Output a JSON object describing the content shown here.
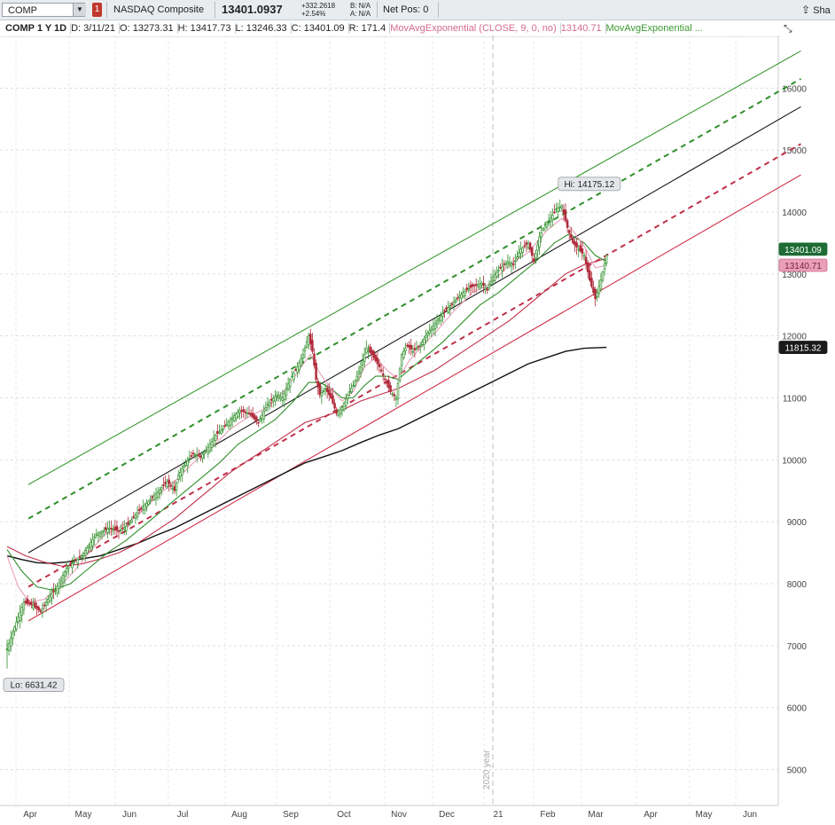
{
  "toolbar": {
    "symbol": "COMP",
    "badge": "1",
    "name": "NASDAQ Composite",
    "last": "13401.0937",
    "change_abs": "+332.2618",
    "change_pct": "+2.54%",
    "bid": "B: N/A",
    "ask": "A: N/A",
    "netpos": "Net Pos: 0",
    "share_label": "Sha"
  },
  "header": {
    "title": "COMP 1 Y 1D",
    "date": "D: 3/11/21",
    "open": "O: 13273.31",
    "high": "H: 13417.73",
    "low": "L: 13246.33",
    "close": "C: 13401.09",
    "range": "R: 171.4",
    "study1": "MovAvgExponential (CLOSE, 9, 0, no)",
    "study1_value": "13140.71",
    "study2": "MovAvgExponential ..."
  },
  "chart_data": {
    "type": "candlestick",
    "y_ticks": [
      5000,
      6000,
      7000,
      8000,
      9000,
      10000,
      11000,
      12000,
      13000,
      14000,
      15000,
      16000
    ],
    "x_ticks": [
      "Apr",
      "May",
      "Jun",
      "Jul",
      "Aug",
      "Sep",
      "Oct",
      "Nov",
      "Dec",
      "21",
      "Feb",
      "Mar",
      "Apr",
      "May",
      "Jun"
    ],
    "ylim": [
      4420,
      16850
    ],
    "year_marker": "2020 year",
    "high_label": "Hi: 14175.12",
    "low_label": "Lo: 6631.42",
    "price_tags": [
      {
        "value": "13401.09",
        "color": "#1e6b34"
      },
      {
        "value": "13140.71",
        "color": "#e8a0b8"
      },
      {
        "value": "11815.32",
        "color": "#1a1a1a"
      }
    ],
    "price_path": [
      [
        0,
        6950
      ],
      [
        4,
        7300
      ],
      [
        9,
        7700
      ],
      [
        14,
        7650
      ],
      [
        18,
        7550
      ],
      [
        23,
        7800
      ],
      [
        26,
        7900
      ],
      [
        32,
        8250
      ],
      [
        40,
        8450
      ],
      [
        48,
        8800
      ],
      [
        55,
        8900
      ],
      [
        60,
        8850
      ],
      [
        65,
        8950
      ],
      [
        70,
        9150
      ],
      [
        75,
        9300
      ],
      [
        80,
        9450
      ],
      [
        86,
        9650
      ],
      [
        90,
        9500
      ],
      [
        92,
        9750
      ],
      [
        96,
        9950
      ],
      [
        100,
        10100
      ],
      [
        104,
        10050
      ],
      [
        108,
        10200
      ],
      [
        112,
        10400
      ],
      [
        116,
        10500
      ],
      [
        120,
        10650
      ],
      [
        125,
        10800
      ],
      [
        130,
        10750
      ],
      [
        135,
        10600
      ],
      [
        140,
        10900
      ],
      [
        145,
        11050
      ],
      [
        148,
        11000
      ],
      [
        152,
        11300
      ],
      [
        156,
        11500
      ],
      [
        159,
        11700
      ],
      [
        162,
        12000
      ],
      [
        164,
        11750
      ],
      [
        166,
        11300
      ],
      [
        168,
        11050
      ],
      [
        171,
        11150
      ],
      [
        174,
        11000
      ],
      [
        177,
        10750
      ],
      [
        180,
        10850
      ],
      [
        183,
        11050
      ],
      [
        186,
        11200
      ],
      [
        190,
        11500
      ],
      [
        193,
        11800
      ],
      [
        196,
        11700
      ],
      [
        200,
        11500
      ],
      [
        203,
        11300
      ],
      [
        206,
        11100
      ],
      [
        209,
        11000
      ],
      [
        212,
        11700
      ],
      [
        215,
        11850
      ],
      [
        218,
        11750
      ],
      [
        222,
        11850
      ],
      [
        226,
        12050
      ],
      [
        230,
        12200
      ],
      [
        235,
        12400
      ],
      [
        240,
        12550
      ],
      [
        245,
        12700
      ],
      [
        250,
        12800
      ],
      [
        255,
        12850
      ],
      [
        258,
        12750
      ],
      [
        261,
        12950
      ],
      [
        265,
        13100
      ],
      [
        269,
        13200
      ],
      [
        272,
        13150
      ],
      [
        276,
        13400
      ],
      [
        280,
        13500
      ],
      [
        283,
        13200
      ],
      [
        286,
        13600
      ],
      [
        289,
        13800
      ],
      [
        292,
        13900
      ],
      [
        295,
        14050
      ],
      [
        298,
        14100
      ],
      [
        301,
        13750
      ],
      [
        304,
        13500
      ],
      [
        307,
        13400
      ],
      [
        310,
        13300
      ],
      [
        313,
        12900
      ],
      [
        316,
        12600
      ],
      [
        319,
        12900
      ],
      [
        322,
        13300
      ]
    ],
    "ema9": [
      [
        0,
        8450
      ],
      [
        6,
        7950
      ],
      [
        12,
        7700
      ],
      [
        20,
        7750
      ],
      [
        28,
        7950
      ],
      [
        36,
        8200
      ],
      [
        44,
        8500
      ],
      [
        52,
        8780
      ],
      [
        60,
        8900
      ],
      [
        70,
        9100
      ],
      [
        80,
        9400
      ],
      [
        90,
        9650
      ],
      [
        100,
        9950
      ],
      [
        110,
        10200
      ],
      [
        120,
        10500
      ],
      [
        130,
        10700
      ],
      [
        140,
        10850
      ],
      [
        150,
        11150
      ],
      [
        158,
        11500
      ],
      [
        163,
        11700
      ],
      [
        168,
        11400
      ],
      [
        174,
        11150
      ],
      [
        180,
        10950
      ],
      [
        186,
        11100
      ],
      [
        192,
        11500
      ],
      [
        198,
        11650
      ],
      [
        204,
        11450
      ],
      [
        210,
        11300
      ],
      [
        216,
        11600
      ],
      [
        222,
        11800
      ],
      [
        230,
        12050
      ],
      [
        240,
        12400
      ],
      [
        250,
        12700
      ],
      [
        260,
        12850
      ],
      [
        270,
        13150
      ],
      [
        280,
        13350
      ],
      [
        290,
        13700
      ],
      [
        298,
        13900
      ],
      [
        304,
        13700
      ],
      [
        310,
        13450
      ],
      [
        316,
        13100
      ],
      [
        322,
        13140.71
      ]
    ],
    "ema20": [
      [
        0,
        8550
      ],
      [
        8,
        8200
      ],
      [
        16,
        7950
      ],
      [
        24,
        7900
      ],
      [
        34,
        8000
      ],
      [
        44,
        8250
      ],
      [
        54,
        8500
      ],
      [
        64,
        8700
      ],
      [
        74,
        8950
      ],
      [
        84,
        9200
      ],
      [
        94,
        9450
      ],
      [
        104,
        9700
      ],
      [
        114,
        9950
      ],
      [
        124,
        10250
      ],
      [
        134,
        10450
      ],
      [
        144,
        10650
      ],
      [
        154,
        10950
      ],
      [
        162,
        11250
      ],
      [
        168,
        11250
      ],
      [
        174,
        11150
      ],
      [
        180,
        11000
      ],
      [
        186,
        11000
      ],
      [
        192,
        11200
      ],
      [
        198,
        11350
      ],
      [
        204,
        11350
      ],
      [
        210,
        11300
      ],
      [
        216,
        11450
      ],
      [
        224,
        11650
      ],
      [
        234,
        11900
      ],
      [
        244,
        12200
      ],
      [
        254,
        12500
      ],
      [
        264,
        12700
      ],
      [
        274,
        12950
      ],
      [
        284,
        13200
      ],
      [
        294,
        13500
      ],
      [
        302,
        13650
      ],
      [
        310,
        13500
      ],
      [
        316,
        13300
      ],
      [
        322,
        13200
      ]
    ],
    "ema50": [
      [
        0,
        8600
      ],
      [
        10,
        8450
      ],
      [
        20,
        8350
      ],
      [
        30,
        8280
      ],
      [
        40,
        8320
      ],
      [
        50,
        8400
      ],
      [
        60,
        8500
      ],
      [
        70,
        8650
      ],
      [
        80,
        8850
      ],
      [
        90,
        9050
      ],
      [
        100,
        9300
      ],
      [
        110,
        9550
      ],
      [
        120,
        9800
      ],
      [
        130,
        10000
      ],
      [
        140,
        10200
      ],
      [
        150,
        10400
      ],
      [
        160,
        10600
      ],
      [
        170,
        10700
      ],
      [
        180,
        10800
      ],
      [
        190,
        10950
      ],
      [
        200,
        11050
      ],
      [
        210,
        11150
      ],
      [
        220,
        11300
      ],
      [
        230,
        11450
      ],
      [
        240,
        11650
      ],
      [
        250,
        11850
      ],
      [
        260,
        12050
      ],
      [
        270,
        12250
      ],
      [
        280,
        12500
      ],
      [
        290,
        12750
      ],
      [
        300,
        13000
      ],
      [
        310,
        13150
      ],
      [
        322,
        13250
      ]
    ],
    "sma200": [
      [
        0,
        8450
      ],
      [
        8,
        8390
      ],
      [
        16,
        8340
      ],
      [
        24,
        8330
      ],
      [
        32,
        8350
      ],
      [
        40,
        8400
      ],
      [
        50,
        8450
      ],
      [
        60,
        8550
      ],
      [
        70,
        8650
      ],
      [
        80,
        8780
      ],
      [
        90,
        8900
      ],
      [
        100,
        9050
      ],
      [
        110,
        9200
      ],
      [
        120,
        9350
      ],
      [
        130,
        9500
      ],
      [
        140,
        9650
      ],
      [
        150,
        9800
      ],
      [
        160,
        9950
      ],
      [
        170,
        10050
      ],
      [
        180,
        10150
      ],
      [
        190,
        10280
      ],
      [
        200,
        10400
      ],
      [
        210,
        10500
      ],
      [
        220,
        10650
      ],
      [
        230,
        10800
      ],
      [
        240,
        10950
      ],
      [
        250,
        11100
      ],
      [
        260,
        11250
      ],
      [
        270,
        11400
      ],
      [
        280,
        11550
      ],
      [
        290,
        11650
      ],
      [
        300,
        11750
      ],
      [
        310,
        11800
      ],
      [
        322,
        11815.32
      ]
    ],
    "channel_lines": [
      {
        "name": "upper-channel",
        "style": "solid",
        "color": "#3a9a30",
        "from": [
          0,
          9600
        ],
        "to": [
          415,
          16600
        ]
      },
      {
        "name": "upper-mid-channel",
        "style": "dashed",
        "color": "#2f8f2a",
        "from": [
          0,
          9050
        ],
        "to": [
          415,
          16150
        ]
      },
      {
        "name": "center-trend",
        "style": "solid",
        "color": "#1a1a1a",
        "from": [
          0,
          8500
        ],
        "to": [
          415,
          15700
        ]
      },
      {
        "name": "lower-mid-channel",
        "style": "dashed",
        "color": "#c0304a",
        "from": [
          0,
          7950
        ],
        "to": [
          415,
          15100
        ]
      },
      {
        "name": "lower-channel",
        "style": "solid",
        "color": "#d0304a",
        "from": [
          0,
          7400
        ],
        "to": [
          415,
          14600
        ]
      }
    ]
  }
}
